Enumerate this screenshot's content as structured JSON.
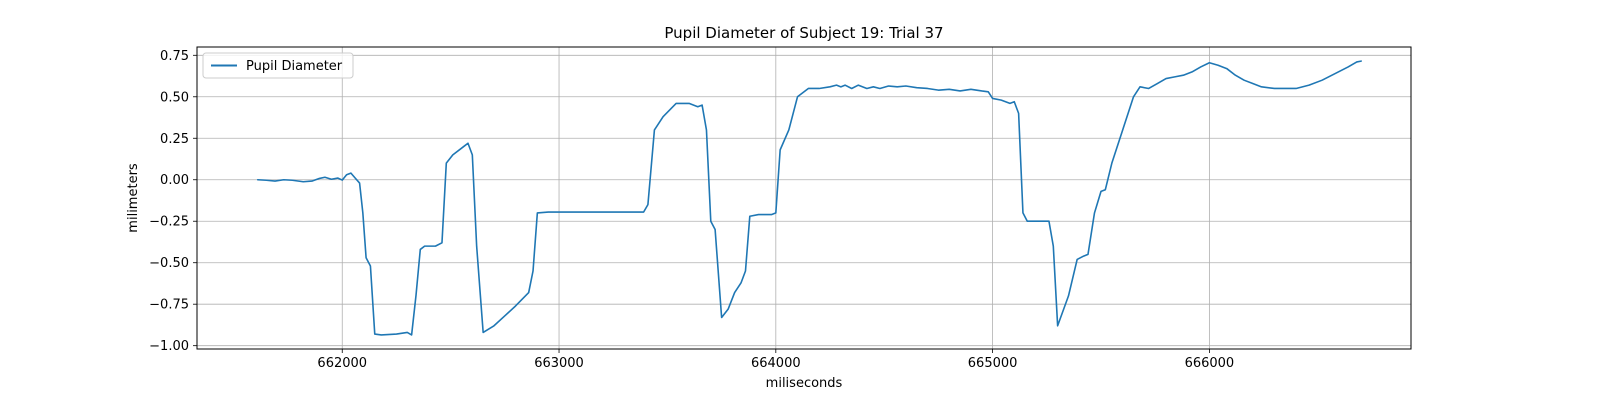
{
  "chart_data": {
    "type": "line",
    "title": "Pupil Diameter of Subject 19: Trial 37",
    "xlabel": "miliseconds",
    "ylabel": "milimeters",
    "xlim": [
      661330,
      666930
    ],
    "ylim": [
      -1.02,
      0.8
    ],
    "xticks": [
      662000,
      663000,
      664000,
      665000,
      666000
    ],
    "xtick_labels": [
      "662000",
      "663000",
      "664000",
      "665000",
      "666000"
    ],
    "yticks": [
      0.75,
      0.5,
      0.25,
      0.0,
      -0.25,
      -0.5,
      -0.75,
      -1.0
    ],
    "ytick_labels": [
      "0.75",
      "0.50",
      "0.25",
      "0.00",
      "−0.25",
      "−0.50",
      "−0.75",
      "−1.00"
    ],
    "grid": true,
    "legend_position": "top-left",
    "series": [
      {
        "name": "Pupil Diameter",
        "color": "#1f77b4",
        "points": [
          [
            661610,
            0.0
          ],
          [
            661650,
            -0.003
          ],
          [
            661690,
            -0.008
          ],
          [
            661730,
            0.0
          ],
          [
            661770,
            -0.003
          ],
          [
            661820,
            -0.012
          ],
          [
            661860,
            -0.008
          ],
          [
            661895,
            0.008
          ],
          [
            661920,
            0.015
          ],
          [
            661950,
            0.003
          ],
          [
            661980,
            0.01
          ],
          [
            662000,
            -0.002
          ],
          [
            662020,
            0.03
          ],
          [
            662040,
            0.04
          ],
          [
            662060,
            0.01
          ],
          [
            662080,
            -0.02
          ],
          [
            662095,
            -0.2
          ],
          [
            662110,
            -0.47
          ],
          [
            662130,
            -0.52
          ],
          [
            662150,
            -0.93
          ],
          [
            662180,
            -0.935
          ],
          [
            662250,
            -0.93
          ],
          [
            662300,
            -0.92
          ],
          [
            662320,
            -0.935
          ],
          [
            662340,
            -0.7
          ],
          [
            662360,
            -0.42
          ],
          [
            662380,
            -0.4
          ],
          [
            662430,
            -0.4
          ],
          [
            662460,
            -0.38
          ],
          [
            662480,
            0.1
          ],
          [
            662510,
            0.15
          ],
          [
            662560,
            0.2
          ],
          [
            662580,
            0.22
          ],
          [
            662600,
            0.15
          ],
          [
            662620,
            -0.4
          ],
          [
            662650,
            -0.92
          ],
          [
            662700,
            -0.88
          ],
          [
            662750,
            -0.82
          ],
          [
            662800,
            -0.76
          ],
          [
            662830,
            -0.72
          ],
          [
            662860,
            -0.68
          ],
          [
            662880,
            -0.55
          ],
          [
            662900,
            -0.2
          ],
          [
            662950,
            -0.195
          ],
          [
            663000,
            -0.195
          ],
          [
            663100,
            -0.195
          ],
          [
            663200,
            -0.195
          ],
          [
            663300,
            -0.195
          ],
          [
            663390,
            -0.195
          ],
          [
            663410,
            -0.15
          ],
          [
            663440,
            0.3
          ],
          [
            663480,
            0.38
          ],
          [
            663540,
            0.46
          ],
          [
            663600,
            0.46
          ],
          [
            663640,
            0.44
          ],
          [
            663660,
            0.45
          ],
          [
            663680,
            0.3
          ],
          [
            663700,
            -0.25
          ],
          [
            663720,
            -0.3
          ],
          [
            663750,
            -0.83
          ],
          [
            663780,
            -0.78
          ],
          [
            663810,
            -0.68
          ],
          [
            663840,
            -0.62
          ],
          [
            663860,
            -0.55
          ],
          [
            663880,
            -0.22
          ],
          [
            663920,
            -0.21
          ],
          [
            663980,
            -0.21
          ],
          [
            664000,
            -0.2
          ],
          [
            664020,
            0.18
          ],
          [
            664060,
            0.3
          ],
          [
            664100,
            0.5
          ],
          [
            664150,
            0.55
          ],
          [
            664200,
            0.55
          ],
          [
            664250,
            0.56
          ],
          [
            664280,
            0.57
          ],
          [
            664300,
            0.56
          ],
          [
            664320,
            0.57
          ],
          [
            664350,
            0.55
          ],
          [
            664380,
            0.57
          ],
          [
            664420,
            0.55
          ],
          [
            664450,
            0.56
          ],
          [
            664480,
            0.55
          ],
          [
            664520,
            0.565
          ],
          [
            664560,
            0.56
          ],
          [
            664600,
            0.565
          ],
          [
            664650,
            0.555
          ],
          [
            664700,
            0.55
          ],
          [
            664750,
            0.54
          ],
          [
            664800,
            0.545
          ],
          [
            664850,
            0.535
          ],
          [
            664900,
            0.545
          ],
          [
            664950,
            0.535
          ],
          [
            664980,
            0.53
          ],
          [
            665000,
            0.49
          ],
          [
            665040,
            0.48
          ],
          [
            665080,
            0.46
          ],
          [
            665100,
            0.47
          ],
          [
            665120,
            0.4
          ],
          [
            665140,
            -0.2
          ],
          [
            665160,
            -0.25
          ],
          [
            665200,
            -0.25
          ],
          [
            665260,
            -0.25
          ],
          [
            665280,
            -0.4
          ],
          [
            665300,
            -0.88
          ],
          [
            665350,
            -0.7
          ],
          [
            665390,
            -0.48
          ],
          [
            665420,
            -0.46
          ],
          [
            665440,
            -0.45
          ],
          [
            665470,
            -0.2
          ],
          [
            665500,
            -0.07
          ],
          [
            665520,
            -0.06
          ],
          [
            665550,
            0.1
          ],
          [
            665600,
            0.3
          ],
          [
            665650,
            0.5
          ],
          [
            665680,
            0.56
          ],
          [
            665720,
            0.55
          ],
          [
            665760,
            0.58
          ],
          [
            665800,
            0.61
          ],
          [
            665840,
            0.62
          ],
          [
            665880,
            0.63
          ],
          [
            665920,
            0.65
          ],
          [
            665960,
            0.68
          ],
          [
            666000,
            0.705
          ],
          [
            666040,
            0.69
          ],
          [
            666080,
            0.67
          ],
          [
            666120,
            0.63
          ],
          [
            666160,
            0.6
          ],
          [
            666200,
            0.58
          ],
          [
            666240,
            0.56
          ],
          [
            666300,
            0.55
          ],
          [
            666400,
            0.55
          ],
          [
            666460,
            0.57
          ],
          [
            666520,
            0.6
          ],
          [
            666580,
            0.64
          ],
          [
            666640,
            0.68
          ],
          [
            666680,
            0.71
          ],
          [
            666700,
            0.715
          ]
        ]
      }
    ]
  }
}
